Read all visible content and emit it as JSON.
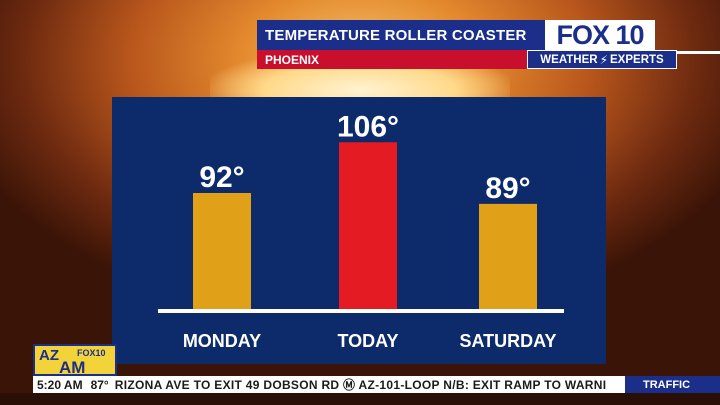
{
  "header": {
    "title": "TEMPERATURE ROLLER COASTER",
    "location": "PHOENIX"
  },
  "brand": {
    "logo": "FOX 10",
    "sub_left": "WEATHER",
    "sub_right": "EXPERTS",
    "bolt_icon": "lightning-bolt-icon"
  },
  "chart_data": {
    "type": "bar",
    "categories": [
      "MONDAY",
      "TODAY",
      "SATURDAY"
    ],
    "values": [
      92,
      106,
      89
    ],
    "labels": [
      "92°",
      "106°",
      "89°"
    ],
    "colors": [
      "#e0a018",
      "#e51b23",
      "#e0a018"
    ],
    "title": "",
    "xlabel": "",
    "ylabel": "",
    "ylim": [
      60,
      108
    ],
    "grid": false,
    "legend": "none"
  },
  "show_logo": {
    "az": "AZ",
    "fox": "FOX10",
    "am": "AM"
  },
  "ticker": {
    "time": "5:20 AM",
    "temp": "87°",
    "text": "RIZONA AVE TO EXIT 49 DOBSON RD  Ⓜ  AZ-101-LOOP N/B: EXIT RAMP TO WARNI",
    "category": "TRAFFIC"
  }
}
